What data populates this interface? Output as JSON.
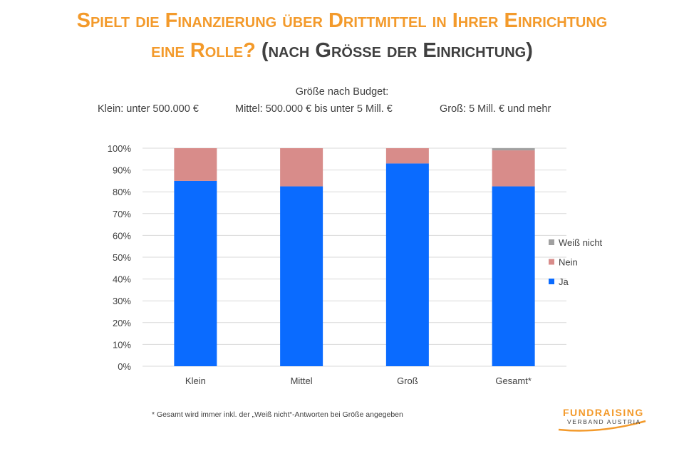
{
  "title": {
    "line1": "Spielt die Finanzierung über Drittmittel in Ihrer Einrichtung",
    "line2_main": "eine Rolle?",
    "line2_paren": "(nach Grösse der Einrichtung)"
  },
  "size_legend": {
    "heading": "Größe nach Budget:",
    "klein": "Klein: unter 500.000 €",
    "mittel": "Mittel: 500.000 € bis  unter 5 Mill. €",
    "gross": "Groß: 5 Mill. € und mehr"
  },
  "footnote": "* Gesamt wird immer inkl. der „Weiß nicht“-Antworten bei Größe angegeben",
  "logo": {
    "name": "FUNDRAISING",
    "sub": "VERBAND AUSTRIA"
  },
  "colors": {
    "title": "#f39a2b",
    "ja": "#0a6bff",
    "nein": "#d88c8a",
    "weiss_nicht": "#a0a0a0",
    "grid": "#d9d9d9"
  },
  "chart_data": {
    "type": "bar",
    "stacked": true,
    "categories": [
      "Klein",
      "Mittel",
      "Groß",
      "Gesamt*"
    ],
    "series": [
      {
        "name": "Ja",
        "values": [
          85,
          82.5,
          93,
          82.5
        ]
      },
      {
        "name": "Nein",
        "values": [
          15,
          17.5,
          7,
          16.5
        ]
      },
      {
        "name": "Weiß nicht",
        "values": [
          0,
          0,
          0,
          1
        ]
      }
    ],
    "y_ticks": [
      "0%",
      "10%",
      "20%",
      "30%",
      "40%",
      "50%",
      "60%",
      "70%",
      "80%",
      "90%",
      "100%"
    ],
    "ylim": [
      0,
      100
    ],
    "grid": true,
    "legend": "right",
    "legend_order": [
      "Weiß nicht",
      "Nein",
      "Ja"
    ]
  }
}
